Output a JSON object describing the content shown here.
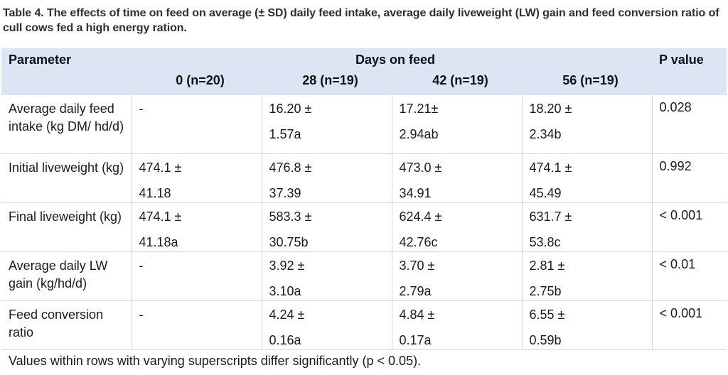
{
  "caption": {
    "label": "Table 4.",
    "text": " The effects of time on feed on average (± SD) daily feed intake, average daily liveweight (LW) gain and feed conversion ratio of cull cows fed a high energy ration."
  },
  "header": {
    "parameter": "Parameter",
    "days_on_feed": "Days on feed",
    "p_value": "P value",
    "columns": [
      "0 (n=20)",
      "28 (n=19)",
      "42 (n=19)",
      "56 (n=19)"
    ]
  },
  "rows": [
    {
      "parameter": "Average daily feed intake (kg DM/ hd/d)",
      "cells": [
        {
          "top": "-",
          "bottom": ""
        },
        {
          "top": "16.20 ±",
          "bottom": "1.57a"
        },
        {
          "top": "17.21±",
          "bottom": "2.94ab"
        },
        {
          "top": "18.20 ±",
          "bottom": "2.34b"
        }
      ],
      "p": "0.028"
    },
    {
      "parameter": "Initial liveweight (kg)",
      "cells": [
        {
          "top": "474.1 ±",
          "bottom": "41.18"
        },
        {
          "top": "476.8 ±",
          "bottom": "37.39"
        },
        {
          "top": "473.0 ±",
          "bottom": "34.91"
        },
        {
          "top": "474.1 ±",
          "bottom": "45.49"
        }
      ],
      "p": "0.992"
    },
    {
      "parameter": "Final liveweight (kg)",
      "cells": [
        {
          "top": "474.1 ±",
          "bottom": "41.18a"
        },
        {
          "top": "583.3 ±",
          "bottom": "30.75b"
        },
        {
          "top": "624.4 ±",
          "bottom": "42.76c"
        },
        {
          "top": "631.7 ±",
          "bottom": "53.8c"
        }
      ],
      "p": "< 0.001"
    },
    {
      "parameter": "Average daily LW gain (kg/hd/d)",
      "cells": [
        {
          "top": "-",
          "bottom": ""
        },
        {
          "top": "3.92 ±",
          "bottom": "3.10a"
        },
        {
          "top": "3.70 ±",
          "bottom": "2.79a"
        },
        {
          "top": "2.81 ±",
          "bottom": "2.75b"
        }
      ],
      "p": "< 0.01"
    },
    {
      "parameter": "Feed conversion ratio",
      "cells": [
        {
          "top": "-",
          "bottom": ""
        },
        {
          "top": "4.24 ±",
          "bottom": "0.16a"
        },
        {
          "top": "4.84 ±",
          "bottom": "0.17a"
        },
        {
          "top": "6.55 ±",
          "bottom": "0.59b"
        }
      ],
      "p": "< 0.001"
    }
  ],
  "footnote": "Values within rows with varying superscripts differ significantly (p < 0.05).",
  "colors": {
    "header_bg": "#dbe5f3",
    "grid": "#d4d4d4",
    "caption_text": "#2f2f2f"
  }
}
